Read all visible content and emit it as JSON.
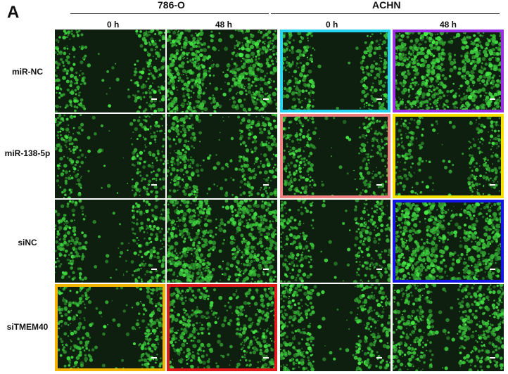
{
  "figure": {
    "panel_letter": "A",
    "groups": [
      {
        "id": "786o",
        "label": "786-O"
      },
      {
        "id": "achn",
        "label": "ACHN"
      }
    ],
    "time_labels": [
      "0 h",
      "48 h",
      "0 h",
      "48 h"
    ],
    "rows": [
      "miR-NC",
      "miR-138-5p",
      "siNC",
      "siTMEM40"
    ],
    "frames": [
      {
        "row": 0,
        "col": 2,
        "color": "#26d4f0"
      },
      {
        "row": 0,
        "col": 3,
        "color": "#9b30e6"
      },
      {
        "row": 1,
        "col": 2,
        "color": "#f08080"
      },
      {
        "row": 1,
        "col": 3,
        "color": "#f5e000"
      },
      {
        "row": 2,
        "col": 3,
        "color": "#1414e6"
      },
      {
        "row": 3,
        "col": 0,
        "color": "#f2b400"
      },
      {
        "row": 3,
        "col": 1,
        "color": "#e01a1a"
      }
    ],
    "colors": {
      "cells": "#3fd040",
      "background": "#0f1f0f"
    }
  }
}
